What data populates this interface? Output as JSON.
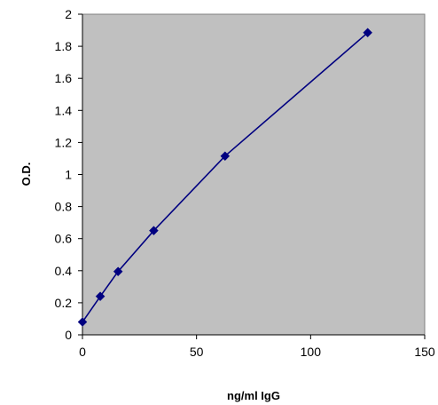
{
  "chart_data": {
    "type": "line",
    "title": "",
    "xlabel": "ng/ml IgG",
    "ylabel": "O.D.",
    "xlim": [
      0,
      150
    ],
    "ylim": [
      0,
      2
    ],
    "x_ticks": [
      0,
      50,
      100,
      150
    ],
    "y_ticks": [
      0,
      0.2,
      0.4,
      0.6,
      0.8,
      1,
      1.2,
      1.4,
      1.6,
      1.8,
      2
    ],
    "x_tick_labels": [
      "0",
      "50",
      "100",
      "150"
    ],
    "y_tick_labels": [
      "0",
      "0.2",
      "0.4",
      "0.6",
      "0.8",
      "1",
      "1.2",
      "1.4",
      "1.6",
      "1.8",
      "2"
    ],
    "grid": false,
    "legend": "none",
    "plot_background": "#c0c0c0",
    "series": [
      {
        "color": "#000080",
        "marker": "diamond",
        "x": [
          0,
          7.8,
          15.6,
          31.25,
          62.5,
          125
        ],
        "y": [
          0.08,
          0.24,
          0.395,
          0.65,
          1.115,
          1.885
        ]
      }
    ]
  }
}
